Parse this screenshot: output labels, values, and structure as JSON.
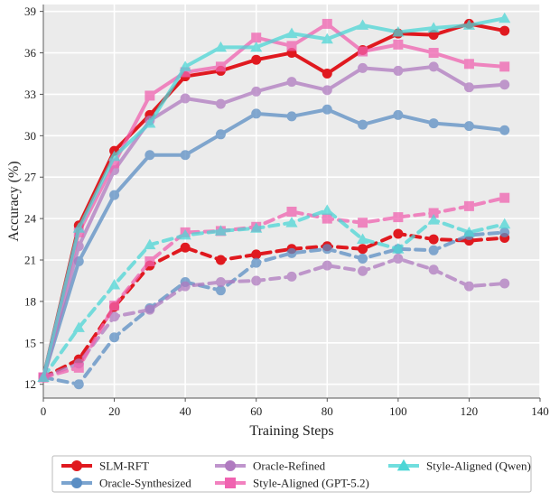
{
  "chart_data": {
    "type": "line",
    "xlabel": "Training Steps",
    "ylabel": "Accuracy (%)",
    "xlim": [
      0,
      140
    ],
    "ylim": [
      11,
      39.5
    ],
    "xticks": [
      0,
      20,
      40,
      60,
      80,
      100,
      120,
      140
    ],
    "yticks": [
      12,
      15,
      18,
      21,
      24,
      27,
      30,
      33,
      36,
      39
    ],
    "grid": true,
    "legend_position": "bottom",
    "x": [
      0,
      10,
      20,
      30,
      40,
      50,
      60,
      70,
      80,
      90,
      100,
      110,
      120,
      130
    ],
    "series": [
      {
        "name": "SLM-RFT",
        "variant": "solid",
        "color": "#e0191f",
        "marker": "circle",
        "values": [
          12.5,
          23.5,
          28.9,
          31.5,
          34.3,
          34.7,
          35.5,
          36.0,
          34.5,
          36.2,
          37.4,
          37.3,
          38.1,
          37.6
        ]
      },
      {
        "name": "Oracle-Synthesized",
        "variant": "solid",
        "color": "#5b8ec4",
        "marker": "circle",
        "values": [
          12.5,
          20.9,
          25.7,
          28.6,
          28.6,
          30.1,
          31.6,
          31.4,
          31.9,
          30.8,
          31.5,
          30.9,
          30.7,
          30.4
        ]
      },
      {
        "name": "Oracle-Refined",
        "variant": "solid",
        "color": "#b07ac0",
        "marker": "circle",
        "values": [
          12.5,
          22.0,
          27.5,
          31.1,
          32.7,
          32.3,
          33.2,
          33.9,
          33.3,
          34.9,
          34.7,
          35.0,
          33.5,
          33.7
        ]
      },
      {
        "name": "Style-Aligned (GPT-5.2)",
        "variant": "solid",
        "color": "#f062b0",
        "marker": "square",
        "values": [
          12.5,
          23.0,
          28.0,
          32.9,
          34.6,
          35.0,
          37.1,
          36.5,
          38.1,
          36.1,
          36.6,
          36.0,
          35.2,
          35.0
        ]
      },
      {
        "name": "Style-Aligned (Qwen)",
        "variant": "solid",
        "color": "#4dd6d6",
        "marker": "triangle",
        "values": [
          12.5,
          23.3,
          28.5,
          30.9,
          35.0,
          36.4,
          36.4,
          37.4,
          37.0,
          38.0,
          37.5,
          37.8,
          38.0,
          38.5
        ]
      },
      {
        "name": "SLM-RFT",
        "variant": "dashed",
        "color": "#e0191f",
        "marker": "circle",
        "values": [
          12.5,
          13.8,
          17.6,
          20.6,
          21.9,
          21.0,
          21.4,
          21.8,
          22.0,
          21.8,
          22.9,
          22.5,
          22.4,
          22.6
        ]
      },
      {
        "name": "Oracle-Synthesized",
        "variant": "dashed",
        "color": "#5b8ec4",
        "marker": "circle",
        "values": [
          12.5,
          12.0,
          15.4,
          17.5,
          19.4,
          18.8,
          20.8,
          21.5,
          21.8,
          21.1,
          21.8,
          21.7,
          22.8,
          23.0
        ]
      },
      {
        "name": "Oracle-Refined",
        "variant": "dashed",
        "color": "#b07ac0",
        "marker": "circle",
        "values": [
          12.5,
          13.5,
          16.9,
          17.4,
          19.1,
          19.4,
          19.5,
          19.8,
          20.6,
          20.2,
          21.1,
          20.3,
          19.1,
          19.3
        ]
      },
      {
        "name": "Style-Aligned (GPT-5.2)",
        "variant": "dashed",
        "color": "#f062b0",
        "marker": "square",
        "values": [
          12.5,
          13.2,
          17.7,
          20.9,
          23.0,
          23.1,
          23.4,
          24.5,
          24.0,
          23.7,
          24.1,
          24.4,
          24.9,
          25.5
        ]
      },
      {
        "name": "Style-Aligned (Qwen)",
        "variant": "dashed",
        "color": "#4dd6d6",
        "marker": "triangle",
        "values": [
          12.5,
          16.1,
          19.2,
          22.1,
          22.8,
          23.1,
          23.3,
          23.7,
          24.6,
          22.5,
          21.8,
          23.9,
          23.0,
          23.6
        ]
      }
    ],
    "legend": {
      "entries": [
        {
          "label": "SLM-RFT",
          "color": "#e0191f",
          "marker": "circle"
        },
        {
          "label": "Oracle-Synthesized",
          "color": "#5b8ec4",
          "marker": "circle"
        },
        {
          "label": "Oracle-Refined",
          "color": "#b07ac0",
          "marker": "circle"
        },
        {
          "label": "Style-Aligned (GPT-5.2)",
          "color": "#f062b0",
          "marker": "square"
        },
        {
          "label": "Style-Aligned (Qwen)",
          "color": "#4dd6d6",
          "marker": "triangle"
        }
      ]
    },
    "plot_background": "#ebebeb",
    "grid_color": "#ffffff"
  }
}
